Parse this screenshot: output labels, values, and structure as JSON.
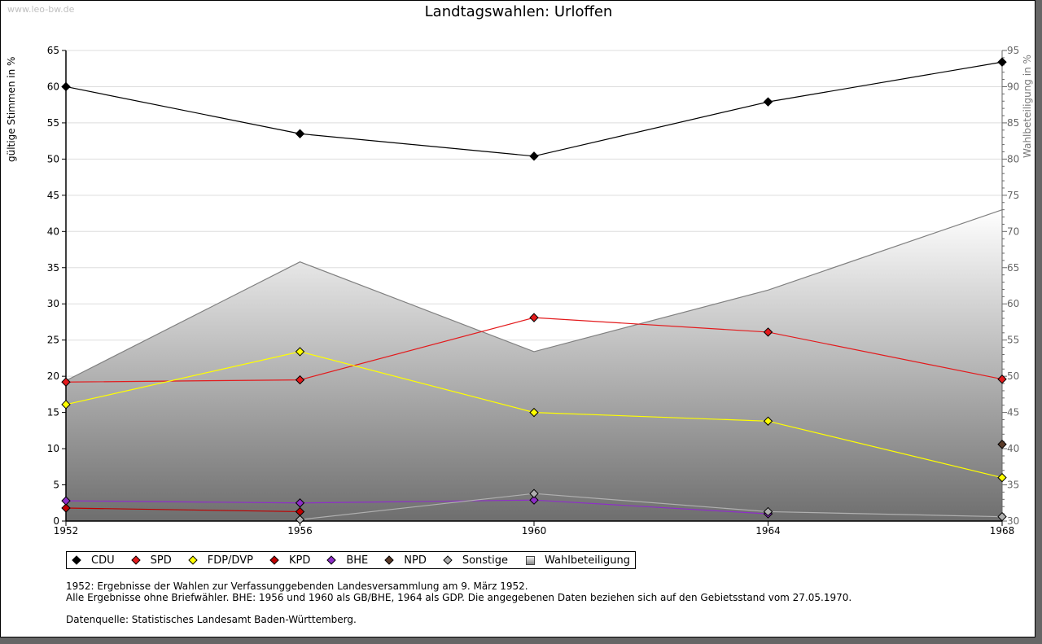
{
  "watermark": "www.leo-bw.de",
  "chart_data": {
    "type": "line",
    "title": "Landtagswahlen: Urloffen",
    "xlabel": "",
    "ylabel": "gültige Stimmen in %",
    "ylabel_right": "Wahlbeteiligung in %",
    "x": [
      1952,
      1956,
      1960,
      1964,
      1968
    ],
    "x_tick_labels": [
      "1952",
      "1956",
      "1960",
      "1964",
      "1968"
    ],
    "ylim": [
      0,
      65
    ],
    "y_ticks": [
      0,
      5,
      10,
      15,
      20,
      25,
      30,
      35,
      40,
      45,
      50,
      55,
      60,
      65
    ],
    "ylim_right": [
      30,
      95
    ],
    "y_ticks_right": [
      30,
      35,
      40,
      45,
      50,
      55,
      60,
      65,
      70,
      75,
      80,
      85,
      90,
      95
    ],
    "grid": true,
    "legend_position": "bottom",
    "series": [
      {
        "name": "CDU",
        "color": "#000000",
        "axis": "left",
        "values": [
          60.0,
          53.5,
          50.4,
          57.9,
          63.4
        ]
      },
      {
        "name": "SPD",
        "color": "#e31a1c",
        "axis": "left",
        "values": [
          19.2,
          19.5,
          28.1,
          26.1,
          19.6
        ]
      },
      {
        "name": "FDP/DVP",
        "color": "#ffff00",
        "axis": "left",
        "values": [
          16.1,
          23.4,
          15.0,
          13.8,
          6.0
        ]
      },
      {
        "name": "KPD",
        "color": "#c00000",
        "axis": "left",
        "values": [
          1.8,
          1.3,
          null,
          null,
          null
        ]
      },
      {
        "name": "BHE",
        "color": "#8e2fc8",
        "axis": "left",
        "values": [
          2.8,
          2.5,
          2.9,
          1.0,
          null
        ]
      },
      {
        "name": "NPD",
        "color": "#5a3a28",
        "axis": "left",
        "values": [
          null,
          null,
          null,
          null,
          10.6
        ]
      },
      {
        "name": "Sonstige",
        "color": "#b0b0b0",
        "axis": "left",
        "values": [
          null,
          0.2,
          3.8,
          1.3,
          0.6
        ]
      },
      {
        "name": "Wahlbeteiligung",
        "color": "#808080",
        "axis": "right",
        "type": "area",
        "values": [
          49.4,
          65.8,
          53.4,
          61.9,
          73.0
        ]
      }
    ]
  },
  "legend": [
    {
      "label": "CDU",
      "color": "#000000",
      "marker": "diamond"
    },
    {
      "label": "SPD",
      "color": "#e31a1c",
      "marker": "diamond"
    },
    {
      "label": "FDP/DVP",
      "color": "#ffff00",
      "marker": "diamond"
    },
    {
      "label": "KPD",
      "color": "#c00000",
      "marker": "diamond"
    },
    {
      "label": "BHE",
      "color": "#8e2fc8",
      "marker": "diamond"
    },
    {
      "label": "NPD",
      "color": "#5a3a28",
      "marker": "diamond"
    },
    {
      "label": "Sonstige",
      "color": "#b0b0b0",
      "marker": "diamond"
    },
    {
      "label": "Wahlbeteiligung",
      "color": "#999999",
      "marker": "square"
    }
  ],
  "notes": {
    "line1": "1952: Ergebnisse der Wahlen zur Verfassunggebenden Landesversammlung am 9. März 1952.",
    "line2": "Alle Ergebnisse ohne Briefwähler. BHE: 1956 und 1960 als GB/BHE, 1964 als GDP. Die angegebenen Daten beziehen sich auf den Gebietsstand vom 27.05.1970.",
    "source": "Datenquelle: Statistisches Landesamt Baden-Württemberg."
  }
}
